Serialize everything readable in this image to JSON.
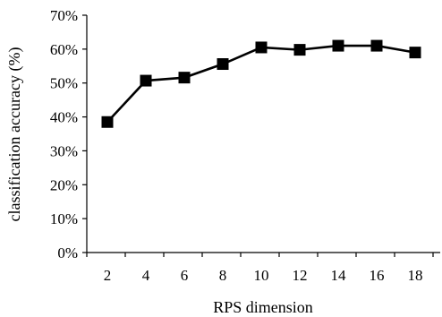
{
  "chart_data": {
    "type": "line",
    "title": "",
    "xlabel": "RPS dimension",
    "ylabel": "classification accuracy (%)",
    "x": [
      2,
      4,
      6,
      8,
      10,
      12,
      14,
      16,
      18
    ],
    "series": [
      {
        "values": [
          38.5,
          50.7,
          51.6,
          55.6,
          60.5,
          59.8,
          61.0,
          61.0,
          59.0
        ]
      }
    ],
    "x_ticks": [
      2,
      4,
      6,
      8,
      10,
      12,
      14,
      16,
      18
    ],
    "y_ticks": [
      0,
      10,
      20,
      30,
      40,
      50,
      60,
      70
    ],
    "y_tick_labels": [
      "0%",
      "10%",
      "20%",
      "30%",
      "40%",
      "50%",
      "60%",
      "70%"
    ],
    "ylim": [
      0,
      70
    ],
    "grid": false,
    "marker": "square",
    "colors": {
      "line": "#000000",
      "marker": "#000000"
    }
  }
}
